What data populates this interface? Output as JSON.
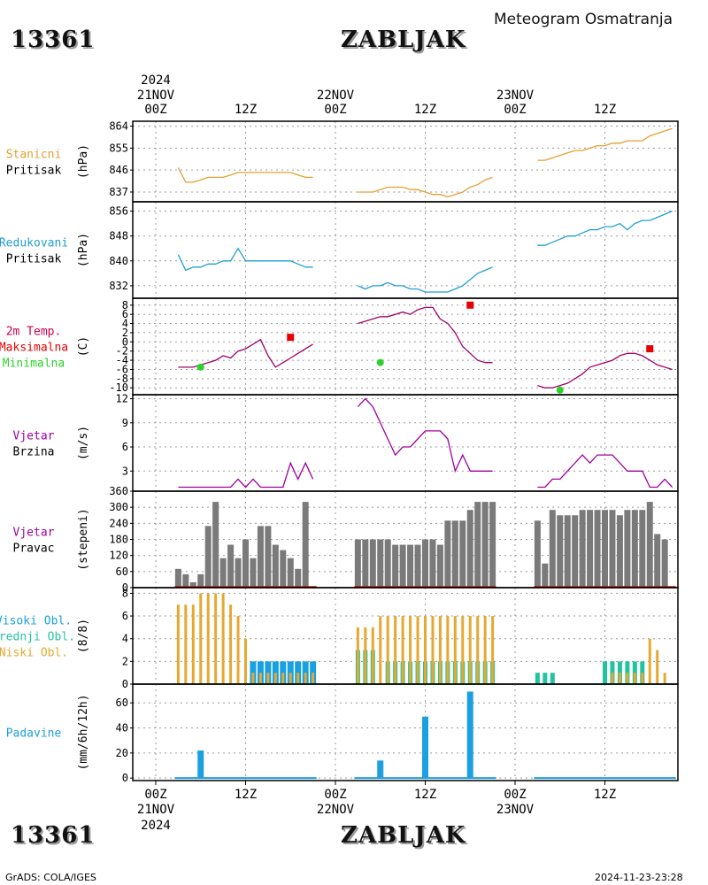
{
  "header": {
    "station_id": "13361",
    "station_name": "ZABLJAK",
    "title": "Meteogram Osmatranja",
    "footer_left": "GrADS: COLA/IGES",
    "footer_right": "2024-11-23-23:28"
  },
  "time_axis": {
    "tick_labels": [
      "00Z",
      "12Z",
      "00Z",
      "12Z",
      "00Z",
      "12Z"
    ],
    "day_labels": [
      "21NOV",
      "22NOV",
      "23NOV"
    ],
    "year": "2024"
  },
  "colors": {
    "pressure_station": "#e3a032",
    "pressure_reduced": "#22a0d2",
    "temperature": "#a0006e",
    "tmax": "#e60000",
    "tmin": "#2bd12b",
    "wind": "#a000a0",
    "wind_dir_bar": "#7a7a7a",
    "cloud_high": "#18a0e0",
    "cloud_mid": "#22c4a0",
    "cloud_low": "#e6a830",
    "precip": "#1ca0e0"
  },
  "chart_data": [
    {
      "type": "line",
      "panel": "station-pressure",
      "label_lines": [
        "Stanicni",
        "Pritisak"
      ],
      "ylabel": "(hPa)",
      "yticks": [
        837,
        846,
        855,
        864
      ],
      "ylim": [
        833,
        866
      ],
      "series": [
        {
          "x": [
            3,
            4,
            5,
            6,
            7,
            8,
            9,
            10,
            11,
            12,
            13,
            14,
            15,
            16,
            17,
            18,
            19,
            20,
            21
          ],
          "y": [
            847,
            841,
            841,
            842,
            843,
            843,
            843,
            844,
            845,
            845,
            845,
            845,
            845,
            845,
            845,
            845,
            844,
            843,
            843
          ]
        },
        {
          "x": [
            27,
            28,
            29,
            30,
            31,
            32,
            33,
            34,
            35,
            36,
            37,
            38,
            39,
            40,
            41,
            42,
            43,
            44,
            45
          ],
          "y": [
            837,
            837,
            837,
            838,
            839,
            839,
            839,
            838,
            838,
            837,
            836,
            836,
            835,
            836,
            837,
            839,
            840,
            842,
            843
          ]
        },
        {
          "x": [
            51,
            52,
            53,
            54,
            55,
            56,
            57,
            58,
            59,
            60,
            61,
            62,
            63,
            64,
            65,
            66,
            67,
            68,
            69
          ],
          "y": [
            850,
            850,
            851,
            852,
            853,
            854,
            854,
            855,
            856,
            856,
            857,
            857,
            858,
            858,
            858,
            860,
            861,
            862,
            863
          ]
        }
      ]
    },
    {
      "type": "line",
      "panel": "reduced-pressure",
      "label_lines": [
        "Redukovani",
        "Pritisak"
      ],
      "ylabel": "(hPa)",
      "yticks": [
        832,
        840,
        848,
        856
      ],
      "ylim": [
        828,
        859
      ],
      "series": [
        {
          "x": [
            3,
            4,
            5,
            6,
            7,
            8,
            9,
            10,
            11,
            12,
            13,
            14,
            15,
            16,
            17,
            18,
            19,
            20,
            21
          ],
          "y": [
            842,
            837,
            838,
            838,
            839,
            839,
            840,
            840,
            844,
            840,
            840,
            840,
            840,
            840,
            840,
            840,
            839,
            838,
            838
          ]
        },
        {
          "x": [
            27,
            28,
            29,
            30,
            31,
            32,
            33,
            34,
            35,
            36,
            37,
            38,
            39,
            40,
            41,
            42,
            43,
            44,
            45
          ],
          "y": [
            832,
            831,
            832,
            832,
            833,
            832,
            832,
            831,
            831,
            830,
            830,
            830,
            830,
            831,
            832,
            834,
            836,
            837,
            838
          ]
        },
        {
          "x": [
            51,
            52,
            53,
            54,
            55,
            56,
            57,
            58,
            59,
            60,
            61,
            62,
            63,
            64,
            65,
            66,
            67,
            68,
            69
          ],
          "y": [
            845,
            845,
            846,
            847,
            848,
            848,
            849,
            850,
            850,
            851,
            851,
            852,
            850,
            852,
            853,
            853,
            854,
            855,
            856
          ]
        }
      ]
    },
    {
      "type": "line",
      "panel": "temperature",
      "label_lines": [
        "2m Temp.",
        "Maksimalna",
        "Minimalna"
      ],
      "ylabel": "(C)",
      "yticks": [
        -10,
        -8,
        -6,
        -4,
        -2,
        0,
        2,
        4,
        6,
        8
      ],
      "ylim": [
        -11.5,
        9.5
      ],
      "series": [
        {
          "name": "2m Temp.",
          "x": [
            3,
            4,
            5,
            6,
            7,
            8,
            9,
            10,
            11,
            12,
            13,
            14,
            15,
            16,
            17,
            18,
            19,
            20,
            21
          ],
          "y": [
            -5.5,
            -5.5,
            -5.5,
            -5,
            -4.5,
            -4,
            -3,
            -3.5,
            -2,
            -1.5,
            -0.5,
            0.5,
            -3,
            -5.5,
            -4.5,
            -3.5,
            -2.5,
            -1.5,
            -0.5
          ]
        },
        {
          "name": "2m Temp.",
          "x": [
            27,
            28,
            29,
            30,
            31,
            32,
            33,
            34,
            35,
            36,
            37,
            38,
            39,
            40,
            41,
            42,
            43,
            44,
            45
          ],
          "y": [
            4,
            4.5,
            5,
            5.5,
            5.5,
            6,
            6.5,
            6,
            7,
            7.5,
            7.5,
            5,
            4,
            2,
            -1,
            -2.5,
            -4,
            -4.5,
            -4.5
          ]
        },
        {
          "name": "2m Temp.",
          "x": [
            51,
            52,
            53,
            54,
            55,
            56,
            57,
            58,
            59,
            60,
            61,
            62,
            63,
            64,
            65,
            66,
            67,
            68,
            69
          ],
          "y": [
            -9.5,
            -10,
            -10,
            -9.5,
            -9,
            -8,
            -7,
            -5.5,
            -5,
            -4.5,
            -4,
            -3,
            -2.5,
            -2.5,
            -3,
            -4,
            -5,
            -5.5,
            -6
          ]
        }
      ],
      "max_points": {
        "name": "Maksimalna",
        "x": [
          18,
          42,
          66
        ],
        "y": [
          1,
          8,
          -1.5
        ]
      },
      "min_points": {
        "name": "Minimalna",
        "x": [
          6,
          30,
          54
        ],
        "y": [
          -5.5,
          -4.5,
          -10.5
        ]
      }
    },
    {
      "type": "line",
      "panel": "wind-speed",
      "label_lines": [
        "Vjetar",
        "Brzina"
      ],
      "ylabel": "(m/s)",
      "yticks": [
        3,
        6,
        9,
        12
      ],
      "ylim": [
        0.5,
        12.5
      ],
      "series": [
        {
          "x": [
            3,
            4,
            5,
            6,
            7,
            8,
            9,
            10,
            11,
            12,
            13,
            14,
            15,
            16,
            17,
            18,
            19,
            20,
            21
          ],
          "y": [
            1,
            1,
            1,
            1,
            1,
            1,
            1,
            1,
            2,
            1,
            2,
            1,
            1,
            1,
            1,
            4,
            2,
            4,
            2
          ]
        },
        {
          "x": [
            27,
            28,
            29,
            30,
            31,
            32,
            33,
            34,
            35,
            36,
            37,
            38,
            39,
            40,
            41,
            42,
            43,
            44,
            45
          ],
          "y": [
            11,
            12,
            11,
            9,
            7,
            5,
            6,
            6,
            7,
            8,
            8,
            8,
            7,
            3,
            5,
            3,
            3,
            3,
            3
          ]
        },
        {
          "x": [
            51,
            52,
            53,
            54,
            55,
            56,
            57,
            58,
            59,
            60,
            61,
            62,
            63,
            64,
            65,
            66,
            67,
            68,
            69
          ],
          "y": [
            1,
            1,
            2,
            2,
            3,
            4,
            5,
            4,
            5,
            5,
            5,
            4,
            3,
            3,
            3,
            1,
            1,
            2,
            1
          ]
        }
      ]
    },
    {
      "type": "bar",
      "panel": "wind-direction",
      "label_lines": [
        "Vjetar",
        "Pravac"
      ],
      "ylabel": "(stepeni)",
      "yticks": [
        0,
        60,
        120,
        180,
        240,
        300,
        360
      ],
      "ylim": [
        0,
        360
      ],
      "series": [
        {
          "x": [
            3,
            4,
            5,
            6,
            7,
            8,
            9,
            10,
            11,
            12,
            13,
            14,
            15,
            16,
            17,
            18,
            19,
            20,
            21
          ],
          "y": [
            70,
            50,
            20,
            50,
            230,
            320,
            110,
            160,
            110,
            180,
            110,
            230,
            230,
            160,
            140,
            110,
            70,
            320,
            0
          ]
        },
        {
          "x": [
            27,
            28,
            29,
            30,
            31,
            32,
            33,
            34,
            35,
            36,
            37,
            38,
            39,
            40,
            41,
            42,
            43,
            44,
            45
          ],
          "y": [
            180,
            180,
            180,
            180,
            180,
            160,
            160,
            160,
            160,
            180,
            180,
            160,
            250,
            250,
            250,
            290,
            320,
            320,
            320
          ]
        },
        {
          "x": [
            51,
            52,
            53,
            54,
            55,
            56,
            57,
            58,
            59,
            60,
            61,
            62,
            63,
            64,
            65,
            66,
            67,
            68,
            69
          ],
          "y": [
            250,
            90,
            290,
            270,
            270,
            270,
            290,
            290,
            290,
            290,
            290,
            270,
            290,
            290,
            290,
            320,
            200,
            180,
            0
          ]
        }
      ]
    },
    {
      "type": "bar",
      "panel": "clouds",
      "label_lines": [
        "Visoki Obl.",
        "Srednji Obl.",
        "Niski Obl."
      ],
      "ylabel": "(8/8)",
      "yticks": [
        0,
        2,
        4,
        6,
        8
      ],
      "ylim": [
        0,
        8.5
      ],
      "series": [
        {
          "name": "Visoki Obl.",
          "x": [
            3,
            4,
            5,
            6,
            7,
            8,
            9,
            10,
            11,
            12,
            13,
            14,
            15,
            16,
            17,
            18,
            19,
            20,
            21
          ],
          "y": [
            0,
            0,
            0,
            0,
            0,
            0,
            0,
            0,
            0,
            0,
            2,
            2,
            2,
            2,
            2,
            2,
            2,
            2,
            2
          ]
        },
        {
          "name": "Srednji Obl.",
          "x": [
            27,
            28,
            29,
            30,
            31,
            32,
            33,
            34,
            35,
            36,
            37,
            38,
            39,
            40,
            41,
            42,
            43,
            44,
            45,
            51,
            52,
            53,
            54,
            55,
            56,
            57,
            58,
            59,
            60,
            61,
            62,
            63,
            64,
            65,
            66,
            67,
            68,
            69
          ],
          "y": [
            3,
            3,
            3,
            0,
            2,
            2,
            2,
            2,
            2,
            2,
            2,
            2,
            2,
            2,
            2,
            2,
            2,
            2,
            2,
            1,
            1,
            1,
            0,
            0,
            0,
            0,
            0,
            0,
            2,
            2,
            2,
            2,
            2,
            2,
            0,
            0,
            0,
            0
          ]
        },
        {
          "name": "Niski Obl.",
          "x": [
            3,
            4,
            5,
            6,
            7,
            8,
            9,
            10,
            11,
            12,
            13,
            14,
            15,
            16,
            17,
            18,
            19,
            20,
            21,
            27,
            28,
            29,
            30,
            31,
            32,
            33,
            34,
            35,
            36,
            37,
            38,
            39,
            40,
            41,
            42,
            43,
            44,
            45,
            51,
            52,
            53,
            54,
            55,
            56,
            57,
            58,
            59,
            60,
            61,
            62,
            63,
            64,
            65,
            66,
            67,
            68,
            69
          ],
          "y": [
            7,
            7,
            7,
            8,
            8,
            8,
            8,
            7,
            6,
            4,
            1,
            1,
            1,
            1,
            1,
            1,
            1,
            1,
            1,
            5,
            5,
            5,
            6,
            6,
            6,
            6,
            6,
            6,
            6,
            6,
            6,
            6,
            6,
            6,
            6,
            6,
            6,
            6,
            0,
            0,
            0,
            0,
            0,
            0,
            0,
            0,
            0,
            0,
            1,
            1,
            1,
            1,
            1,
            4,
            3,
            1,
            0
          ]
        }
      ]
    },
    {
      "type": "bar",
      "panel": "precipitation",
      "label_lines": [
        "Padavine"
      ],
      "ylabel": "(mm/6h/12h)",
      "yticks": [
        0,
        20,
        40,
        60
      ],
      "ylim": [
        -2,
        75
      ],
      "series": [
        {
          "x": [
            6,
            30,
            36,
            42
          ],
          "y": [
            22,
            14,
            49,
            69
          ]
        }
      ]
    }
  ]
}
